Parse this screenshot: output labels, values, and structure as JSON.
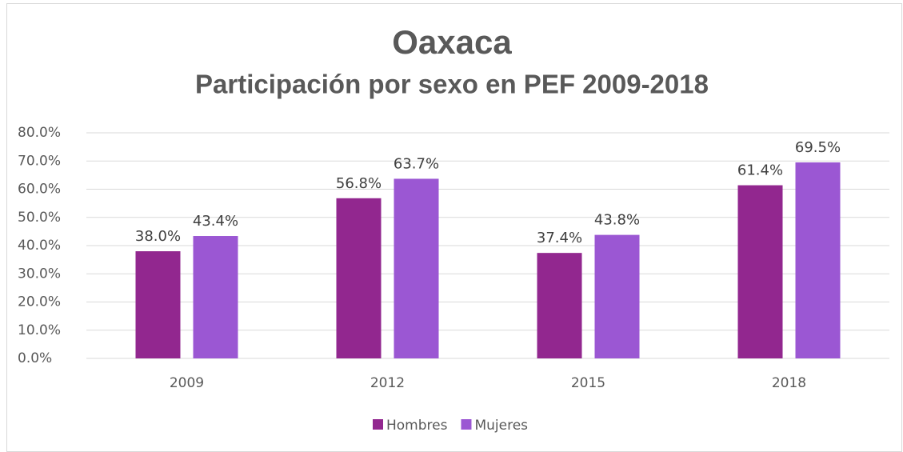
{
  "chart_data": {
    "type": "bar",
    "title": "Oaxaca",
    "subtitle": "Participación por sexo en PEF 2009-2018",
    "categories": [
      "2009",
      "2012",
      "2015",
      "2018"
    ],
    "series": [
      {
        "name": "Hombres",
        "color": "#92278f",
        "values": [
          38.0,
          56.8,
          37.4,
          61.4
        ],
        "value_labels": [
          "38.0%",
          "56.8%",
          "37.4%",
          "61.4%"
        ]
      },
      {
        "name": "Mujeres",
        "color": "#9b57d3",
        "values": [
          43.4,
          63.7,
          43.8,
          69.5
        ],
        "value_labels": [
          "43.4%",
          "63.7%",
          "43.8%",
          "69.5%"
        ]
      }
    ],
    "ylim": [
      0,
      80
    ],
    "yticks": [
      {
        "value": 0,
        "label": "0.0%"
      },
      {
        "value": 10,
        "label": "10.0%"
      },
      {
        "value": 20,
        "label": "20.0%"
      },
      {
        "value": 30,
        "label": "30.0%"
      },
      {
        "value": 40,
        "label": "40.0%"
      },
      {
        "value": 50,
        "label": "50.0%"
      },
      {
        "value": 60,
        "label": "60.0%"
      },
      {
        "value": 70,
        "label": "70.0%"
      },
      {
        "value": 80,
        "label": "80.0%"
      }
    ],
    "grid": true,
    "legend": "bottom"
  }
}
